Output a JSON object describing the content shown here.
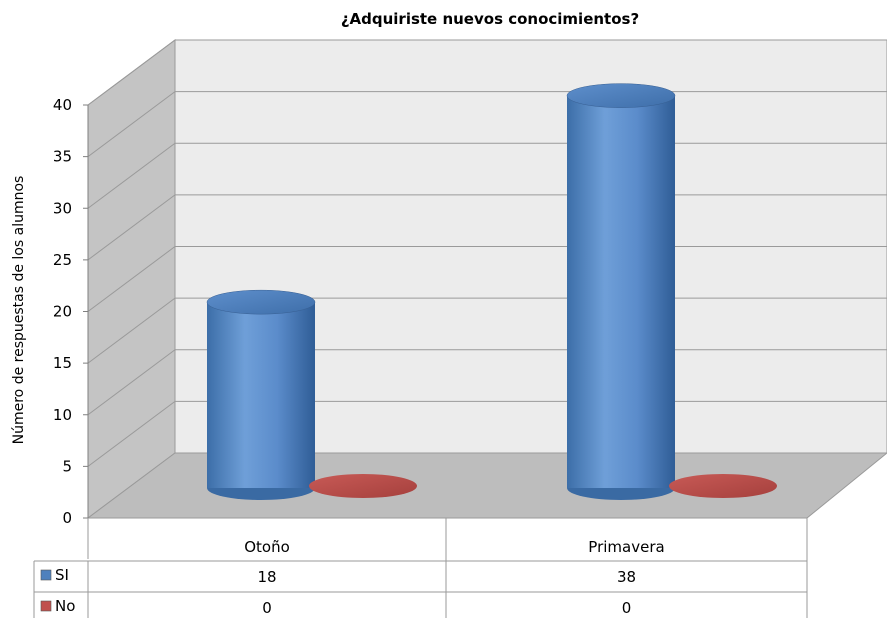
{
  "chart_data": {
    "type": "bar",
    "style": "3d-cylinder",
    "title": "¿Adquiriste nuevos conocimientos?",
    "xlabel": "",
    "ylabel": "Número de respuestas de los alumnos",
    "categories": [
      "Otoño",
      "Primavera"
    ],
    "series": [
      {
        "name": "SI",
        "values": [
          18,
          38
        ],
        "color": "#4f81bd"
      },
      {
        "name": "No",
        "values": [
          0,
          0
        ],
        "color": "#c0504d"
      }
    ],
    "ylim": [
      0,
      40
    ],
    "yticks": [
      0,
      5,
      10,
      15,
      20,
      25,
      30,
      35,
      40
    ],
    "grid": true,
    "legend": "data-table-left",
    "wall_color": "#ececec",
    "floor_color": "#bdbdbd",
    "side_wall_color": "#c4c4c4"
  }
}
